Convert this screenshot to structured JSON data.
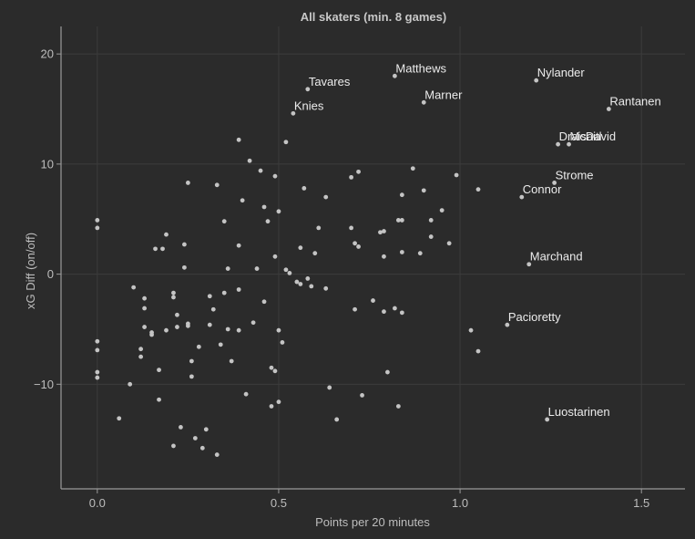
{
  "chart_data": {
    "type": "scatter",
    "title": "All skaters (min. 8 games)",
    "xlabel": "Points per 20 minutes",
    "ylabel": "xG Diff (on/off)",
    "xlim": [
      -0.1,
      1.62
    ],
    "ylim": [
      -19.5,
      22.5
    ],
    "xticks": [
      0.0,
      0.5,
      1.0,
      1.5
    ],
    "yticks": [
      -10,
      0,
      10,
      20
    ],
    "xtick_labels": [
      "0.0",
      "0.5",
      "1.0",
      "1.5"
    ],
    "ytick_labels": [
      "−10",
      "0",
      "10",
      "20"
    ],
    "grid": true,
    "labeled_points": [
      {
        "label": "Matthews",
        "x": 0.82,
        "y": 18.0
      },
      {
        "label": "Nylander",
        "x": 1.21,
        "y": 17.6
      },
      {
        "label": "Tavares",
        "x": 0.58,
        "y": 16.8
      },
      {
        "label": "Marner",
        "x": 0.9,
        "y": 15.6
      },
      {
        "label": "Rantanen",
        "x": 1.41,
        "y": 15.0
      },
      {
        "label": "Knies",
        "x": 0.54,
        "y": 14.6
      },
      {
        "label": "Draisaitl",
        "x": 1.27,
        "y": 11.8
      },
      {
        "label": "McDavid",
        "x": 1.3,
        "y": 11.8
      },
      {
        "label": "Strome",
        "x": 1.26,
        "y": 8.3
      },
      {
        "label": "Connor",
        "x": 1.17,
        "y": 7.0
      },
      {
        "label": "Marchand",
        "x": 1.19,
        "y": 0.9
      },
      {
        "label": "Pacioretty",
        "x": 1.13,
        "y": -4.6
      },
      {
        "label": "Luostarinen",
        "x": 1.24,
        "y": -13.2
      }
    ],
    "points": [
      [
        0.0,
        4.9
      ],
      [
        0.0,
        4.2
      ],
      [
        0.0,
        -6.1
      ],
      [
        0.0,
        -6.9
      ],
      [
        0.0,
        -8.9
      ],
      [
        0.0,
        -9.4
      ],
      [
        0.06,
        -13.1
      ],
      [
        0.09,
        -10.0
      ],
      [
        0.1,
        -1.2
      ],
      [
        0.12,
        -6.8
      ],
      [
        0.12,
        -7.5
      ],
      [
        0.13,
        -2.2
      ],
      [
        0.13,
        -3.1
      ],
      [
        0.13,
        -4.8
      ],
      [
        0.15,
        -5.3
      ],
      [
        0.15,
        -5.5
      ],
      [
        0.16,
        2.3
      ],
      [
        0.17,
        -8.7
      ],
      [
        0.17,
        -11.4
      ],
      [
        0.18,
        2.3
      ],
      [
        0.19,
        3.6
      ],
      [
        0.19,
        -5.1
      ],
      [
        0.21,
        -1.7
      ],
      [
        0.21,
        -2.1
      ],
      [
        0.21,
        -15.6
      ],
      [
        0.22,
        -3.7
      ],
      [
        0.22,
        -4.8
      ],
      [
        0.23,
        -13.9
      ],
      [
        0.24,
        0.6
      ],
      [
        0.24,
        2.7
      ],
      [
        0.25,
        -4.7
      ],
      [
        0.25,
        -4.5
      ],
      [
        0.25,
        8.3
      ],
      [
        0.26,
        -7.9
      ],
      [
        0.26,
        -9.3
      ],
      [
        0.27,
        -14.9
      ],
      [
        0.28,
        -6.6
      ],
      [
        0.29,
        -15.8
      ],
      [
        0.3,
        -14.1
      ],
      [
        0.31,
        -2.0
      ],
      [
        0.31,
        -4.6
      ],
      [
        0.32,
        -3.2
      ],
      [
        0.33,
        8.1
      ],
      [
        0.33,
        -16.4
      ],
      [
        0.34,
        -6.4
      ],
      [
        0.35,
        4.8
      ],
      [
        0.35,
        -1.7
      ],
      [
        0.36,
        0.5
      ],
      [
        0.36,
        -5.0
      ],
      [
        0.37,
        -7.9
      ],
      [
        0.39,
        12.2
      ],
      [
        0.39,
        2.6
      ],
      [
        0.39,
        -1.4
      ],
      [
        0.39,
        -5.1
      ],
      [
        0.4,
        6.7
      ],
      [
        0.41,
        -10.9
      ],
      [
        0.42,
        10.3
      ],
      [
        0.43,
        -4.4
      ],
      [
        0.44,
        0.5
      ],
      [
        0.45,
        9.4
      ],
      [
        0.46,
        6.1
      ],
      [
        0.46,
        -2.5
      ],
      [
        0.47,
        4.8
      ],
      [
        0.48,
        -8.5
      ],
      [
        0.48,
        -12.0
      ],
      [
        0.49,
        8.9
      ],
      [
        0.49,
        1.6
      ],
      [
        0.49,
        -8.8
      ],
      [
        0.5,
        5.7
      ],
      [
        0.5,
        -5.1
      ],
      [
        0.5,
        -11.6
      ],
      [
        0.51,
        -6.2
      ],
      [
        0.52,
        12.0
      ],
      [
        0.52,
        0.4
      ],
      [
        0.53,
        0.1
      ],
      [
        0.55,
        -0.7
      ],
      [
        0.56,
        -0.9
      ],
      [
        0.57,
        7.8
      ],
      [
        0.56,
        2.4
      ],
      [
        0.58,
        -0.4
      ],
      [
        0.59,
        -1.1
      ],
      [
        0.6,
        1.9
      ],
      [
        0.61,
        4.2
      ],
      [
        0.63,
        7.0
      ],
      [
        0.63,
        -1.3
      ],
      [
        0.64,
        -10.3
      ],
      [
        0.66,
        -13.2
      ],
      [
        0.7,
        8.8
      ],
      [
        0.7,
        4.2
      ],
      [
        0.71,
        2.8
      ],
      [
        0.71,
        -3.2
      ],
      [
        0.72,
        9.3
      ],
      [
        0.72,
        2.5
      ],
      [
        0.73,
        -11.0
      ],
      [
        0.76,
        -2.4
      ],
      [
        0.78,
        3.8
      ],
      [
        0.79,
        3.9
      ],
      [
        0.79,
        1.6
      ],
      [
        0.79,
        -3.4
      ],
      [
        0.8,
        -8.9
      ],
      [
        0.82,
        -3.1
      ],
      [
        0.83,
        4.9
      ],
      [
        0.83,
        -12.0
      ],
      [
        0.84,
        7.2
      ],
      [
        0.84,
        4.9
      ],
      [
        0.84,
        2.0
      ],
      [
        0.84,
        -3.5
      ],
      [
        0.87,
        9.6
      ],
      [
        0.89,
        1.9
      ],
      [
        0.9,
        7.6
      ],
      [
        0.92,
        3.4
      ],
      [
        0.92,
        4.9
      ],
      [
        0.95,
        5.8
      ],
      [
        0.97,
        2.8
      ],
      [
        0.99,
        9.0
      ],
      [
        1.03,
        -5.1
      ],
      [
        1.05,
        7.7
      ],
      [
        1.05,
        -7.0
      ]
    ]
  }
}
